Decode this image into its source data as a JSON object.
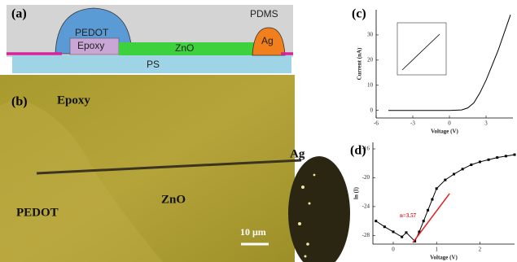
{
  "panels": {
    "a": {
      "label": "(a)",
      "pedot": "PEDOT",
      "epoxy": "Epoxy",
      "zno": "ZnO",
      "ag": "Ag",
      "pdms": "PDMS",
      "ps": "PS"
    },
    "b": {
      "label": "(b)",
      "epoxy": "Epoxy",
      "ag": "Ag",
      "zno": "ZnO",
      "pedot": "PEDOT",
      "scale_bar": "10 μm"
    }
  },
  "chart_data": [
    {
      "type": "line",
      "panel_label": "(c)",
      "x_label": "Voltage (V)",
      "y_label": "Current (nA)",
      "x": [
        -5,
        -3,
        -1,
        0,
        1,
        1.5,
        2,
        2.5,
        3,
        3.5,
        4,
        4.5,
        5
      ],
      "values": [
        0,
        0,
        0,
        0,
        0.2,
        1,
        3,
        7,
        12,
        18,
        24,
        31,
        38
      ],
      "color": "#000000",
      "xlim": [
        -6,
        5.2
      ],
      "ylim": [
        -3,
        40
      ],
      "xticks": [
        -6,
        -3,
        0,
        3
      ],
      "yticks": [
        0,
        10,
        20,
        30
      ],
      "markers": false
    },
    {
      "type": "line",
      "panel_label": "(d)",
      "x_label": "Voltage (V)",
      "y_label": "ln (I)",
      "x": [
        -0.4,
        -0.2,
        0,
        0.2,
        0.3,
        0.5,
        0.6,
        0.7,
        0.8,
        0.9,
        1,
        1.2,
        1.4,
        1.6,
        1.8,
        2,
        2.2,
        2.4,
        2.6,
        2.8
      ],
      "values": [
        -26,
        -26.8,
        -27.5,
        -28.2,
        -27.6,
        -28.8,
        -27.5,
        -26,
        -24.5,
        -23,
        -21.5,
        -20.3,
        -19.5,
        -18.8,
        -18.2,
        -17.8,
        -17.5,
        -17.2,
        -17,
        -16.8
      ],
      "color": "#000000",
      "markers": true,
      "fit": {
        "x": [
          0.45,
          1.3
        ],
        "values": [
          -29,
          -22.2
        ],
        "color": "#e02020"
      },
      "annotation": "n=3.57",
      "xlim": [
        -0.47,
        2.8
      ],
      "ylim": [
        -29.2,
        -15.1
      ],
      "xticks": [
        0,
        1,
        2
      ],
      "yticks": [
        -16,
        -20,
        -24,
        -28
      ]
    }
  ]
}
